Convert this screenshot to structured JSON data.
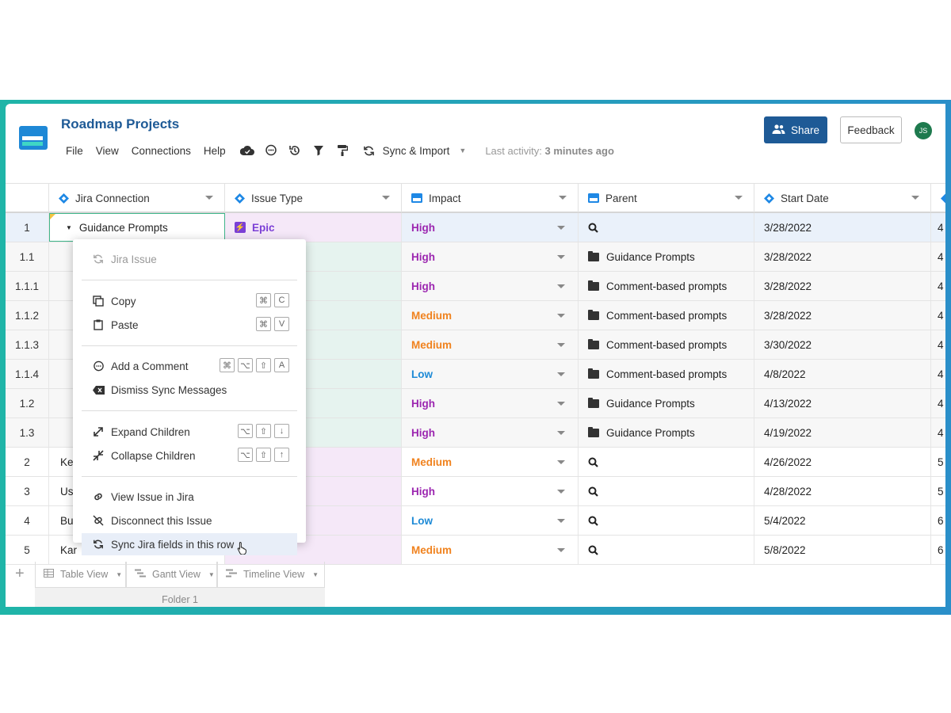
{
  "app": {
    "title": "Roadmap Projects"
  },
  "menu": {
    "items": [
      "File",
      "View",
      "Connections",
      "Help"
    ],
    "sync_label": "Sync & Import",
    "last_activity_label": "Last activity:",
    "last_activity_value": "3 minutes ago"
  },
  "header_right": {
    "share": "Share",
    "feedback": "Feedback",
    "avatar": "JS"
  },
  "columns": [
    "Jira Connection",
    "Issue Type",
    "Impact",
    "Parent",
    "Start Date"
  ],
  "rows": [
    {
      "num": "1",
      "name": "Guidance Prompts",
      "type": "Epic",
      "impact": "High",
      "parent": "",
      "date": "3/28/2022",
      "extra": "4"
    },
    {
      "num": "1.1",
      "name": "",
      "type": "",
      "impact": "High",
      "parent": "Guidance Prompts",
      "date": "3/28/2022",
      "extra": "4"
    },
    {
      "num": "1.1.1",
      "name": "",
      "type": "",
      "impact": "High",
      "parent": "Comment-based prompts",
      "date": "3/28/2022",
      "extra": "4"
    },
    {
      "num": "1.1.2",
      "name": "",
      "type": "",
      "impact": "Medium",
      "parent": "Comment-based prompts",
      "date": "3/28/2022",
      "extra": "4"
    },
    {
      "num": "1.1.3",
      "name": "",
      "type": "",
      "impact": "Medium",
      "parent": "Comment-based prompts",
      "date": "3/30/2022",
      "extra": "4"
    },
    {
      "num": "1.1.4",
      "name": "",
      "type": "",
      "impact": "Low",
      "parent": "Comment-based prompts",
      "date": "4/8/2022",
      "extra": "4"
    },
    {
      "num": "1.2",
      "name": "",
      "type": "",
      "impact": "High",
      "parent": "Guidance Prompts",
      "date": "4/13/2022",
      "extra": "4"
    },
    {
      "num": "1.3",
      "name": "",
      "type": "",
      "impact": "High",
      "parent": "Guidance Prompts",
      "date": "4/19/2022",
      "extra": "4"
    },
    {
      "num": "2",
      "name": "Ke",
      "type": "",
      "impact": "Medium",
      "parent": "",
      "date": "4/26/2022",
      "extra": "5"
    },
    {
      "num": "3",
      "name": "Use",
      "type": "",
      "impact": "High",
      "parent": "",
      "date": "4/28/2022",
      "extra": "5"
    },
    {
      "num": "4",
      "name": "Bul",
      "type": "",
      "impact": "Low",
      "parent": "",
      "date": "5/4/2022",
      "extra": "6"
    },
    {
      "num": "5",
      "name": "Kar",
      "type": "",
      "impact": "Medium",
      "parent": "",
      "date": "5/8/2022",
      "extra": "6"
    }
  ],
  "context_menu": {
    "jira_issue": "Jira Issue",
    "copy": "Copy",
    "copy_keys": [
      "⌘",
      "C"
    ],
    "paste": "Paste",
    "paste_keys": [
      "⌘",
      "V"
    ],
    "add_comment": "Add a Comment",
    "add_comment_keys": [
      "⌘",
      "⌥",
      "⇧",
      "A"
    ],
    "dismiss": "Dismiss Sync Messages",
    "expand": "Expand Children",
    "expand_keys": [
      "⌥",
      "⇧",
      "↓"
    ],
    "collapse": "Collapse Children",
    "collapse_keys": [
      "⌥",
      "⇧",
      "↑"
    ],
    "view_jira": "View Issue in Jira",
    "disconnect": "Disconnect this Issue",
    "sync_row": "Sync Jira fields in this row"
  },
  "tabs": {
    "items": [
      "Table View",
      "Gantt View",
      "Timeline View"
    ],
    "folder": "Folder 1"
  },
  "colors": {
    "high": "#9c27b0",
    "medium": "#f0821e",
    "low": "#1e8ad6",
    "brand": "#1e5a96"
  }
}
